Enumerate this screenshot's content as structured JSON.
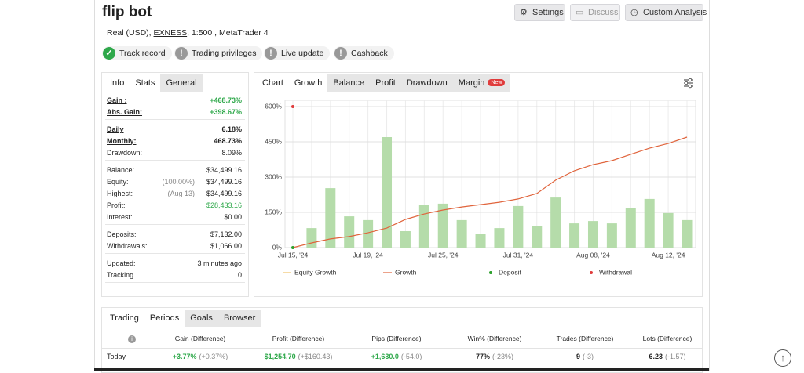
{
  "header": {
    "title": "flip bot",
    "account": "Real (USD), ",
    "broker": "EXNESS",
    "details": ", 1:500 , MetaTrader 4",
    "buttons": [
      "Settings",
      "Discuss",
      "Custom Analysis"
    ]
  },
  "badges": [
    {
      "label": "Track record",
      "ok": true
    },
    {
      "label": "Trading privileges",
      "ok": false
    },
    {
      "label": "Live update",
      "ok": false
    },
    {
      "label": "Cashback",
      "ok": false
    }
  ],
  "stats": {
    "tabs": [
      "Info",
      "Stats",
      "General"
    ],
    "groups": [
      [
        {
          "label": "Gain :",
          "value": "+468.73%",
          "green": true,
          "strong": true
        },
        {
          "label": "Abs. Gain:",
          "value": "+398.67%",
          "green": true,
          "strong": true
        }
      ],
      [
        {
          "label": "Daily",
          "value": "6.18%",
          "strong": true
        },
        {
          "label": "Monthly:",
          "value": "468.73%",
          "strong": true
        },
        {
          "label": "Drawdown:",
          "value": "8.09%"
        }
      ],
      [
        {
          "label": "Balance:",
          "value": "$34,499.16"
        },
        {
          "label": "Equity:",
          "note": "(100.00%)",
          "value": "$34,499.16"
        },
        {
          "label": "Highest:",
          "note": "(Aug 13)",
          "value": "$34,499.16"
        },
        {
          "label": "Profit:",
          "value": "$28,433.16",
          "green": true
        },
        {
          "label": "Interest:",
          "value": "$0.00"
        }
      ],
      [
        {
          "label": "Deposits:",
          "value": "$7,132.00"
        },
        {
          "label": "Withdrawals:",
          "value": "$1,066.00"
        }
      ],
      [
        {
          "label": "Updated:",
          "value": "3 minutes ago"
        },
        {
          "label": "Tracking",
          "value": "0"
        }
      ]
    ]
  },
  "chart_tabs": {
    "tabs": [
      "Chart",
      "Growth",
      "Balance",
      "Profit",
      "Drawdown",
      "Margin"
    ],
    "new_badge": "New"
  },
  "chart_data": {
    "type": "bar",
    "categories": [
      "Jul 15, '24",
      null,
      null,
      null,
      "Jul 19, '24",
      null,
      null,
      null,
      "Jul 25, '24",
      null,
      null,
      null,
      "Jul 31, '24",
      null,
      null,
      null,
      "Aug 08, '24",
      null,
      null,
      null,
      "Aug 12, '24",
      null
    ],
    "ylim": [
      0,
      600
    ],
    "yticks": [
      {
        "value": 0,
        "label": "0%"
      },
      {
        "value": 150,
        "label": "150%"
      },
      {
        "value": 300,
        "label": "300%"
      },
      {
        "value": 450,
        "label": "450%"
      },
      {
        "value": 600,
        "label": "600%"
      }
    ],
    "grid": true,
    "bars": {
      "color": "#b5dcaa",
      "values": [
        null,
        83,
        253,
        133,
        117,
        470,
        70,
        183,
        187,
        117,
        57,
        83,
        177,
        93,
        213,
        103,
        113,
        103,
        167,
        207,
        147,
        117
      ]
    },
    "series": [
      {
        "name": "Equity Growth",
        "color": "#f0c36a",
        "kind": "line"
      },
      {
        "name": "Growth",
        "color": "#e0643c",
        "kind": "line",
        "values": [
          0,
          20,
          37,
          47,
          63,
          83,
          120,
          143,
          160,
          173,
          183,
          193,
          207,
          230,
          287,
          327,
          353,
          370,
          397,
          423,
          443,
          470
        ]
      },
      {
        "name": "Deposit",
        "color": "#2ca02c",
        "kind": "dot",
        "values": [
          0,
          null,
          null,
          null,
          null,
          null,
          null,
          null,
          null,
          null,
          null,
          null,
          null,
          null,
          null,
          null,
          null,
          null,
          null,
          null,
          null,
          null
        ]
      },
      {
        "name": "Withdrawal",
        "color": "#e03c3c",
        "kind": "dot",
        "values": [
          600,
          null,
          null,
          null,
          null,
          null,
          null,
          null,
          null,
          null,
          null,
          null,
          null,
          null,
          null,
          null,
          null,
          null,
          null,
          null,
          null,
          null
        ]
      }
    ]
  },
  "periods": {
    "tabs": [
      "Trading",
      "Periods",
      "Goals",
      "Browser"
    ],
    "header": [
      "Gain (Difference)",
      "Profit (Difference)",
      "Pips (Difference)",
      "Win% (Difference)",
      "Trades (Difference)",
      "Lots (Difference)"
    ],
    "row": {
      "label": "Today",
      "cells": [
        [
          "+3.77%",
          "(+0.37%)"
        ],
        [
          "$1,254.70",
          "(+$160.43)"
        ],
        [
          "+1,630.0",
          "(-54.0)"
        ],
        [
          "77%",
          "(-23%)"
        ],
        [
          "9",
          "(-3)"
        ],
        [
          "6.23",
          "(-1.57)"
        ]
      ]
    }
  }
}
